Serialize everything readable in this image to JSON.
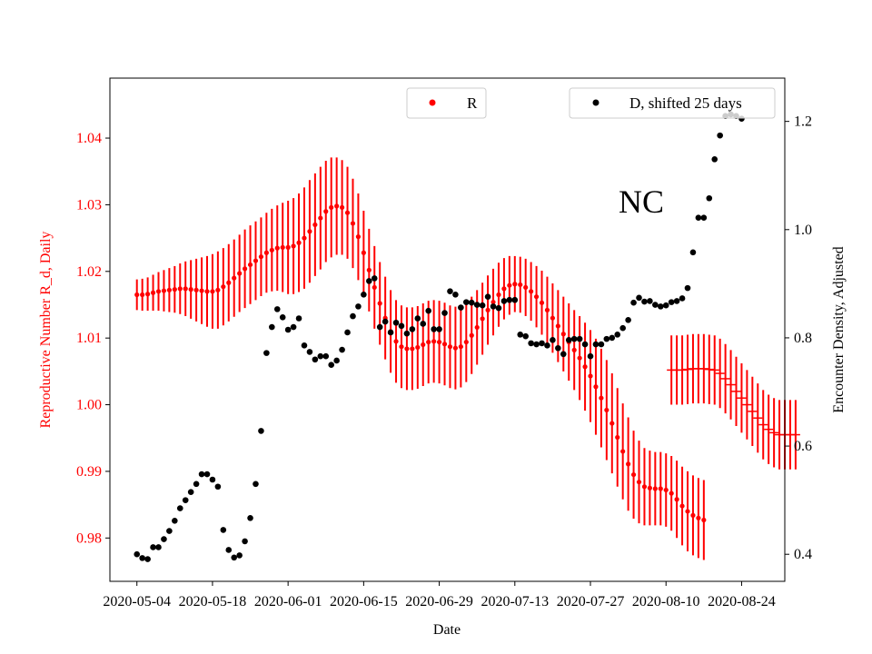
{
  "colors": {
    "r_series": "#ff0000",
    "d_series": "#000000",
    "axis": "#000000",
    "background": "#ffffff"
  },
  "chart_data": {
    "type": "scatter",
    "title": "",
    "annotation": "NC",
    "xlabel": "Date",
    "ylabel_left": "Reproductive Number R_d, Daily",
    "ylabel_right": "Encounter Density, Adjusted",
    "x_tick_labels": [
      "2020-05-04",
      "2020-05-18",
      "2020-06-01",
      "2020-06-15",
      "2020-06-29",
      "2020-07-13",
      "2020-07-27",
      "2020-08-10",
      "2020-08-24"
    ],
    "y_left_tick_labels": [
      "0.98",
      "0.99",
      "1.00",
      "1.01",
      "1.02",
      "1.03",
      "1.04"
    ],
    "y_right_tick_labels": [
      "0.4",
      "0.6",
      "0.8",
      "1.0",
      "1.2"
    ],
    "xlim": [
      "2020-04-29",
      "2020-09-01"
    ],
    "ylim_left": [
      0.9735,
      1.049
    ],
    "ylim_right": [
      0.35,
      1.28
    ],
    "legend": [
      {
        "label": "R",
        "placement": "top-center"
      },
      {
        "label": "D, shifted 25 days",
        "placement": "top-right"
      }
    ],
    "series": [
      {
        "name": "R",
        "axis": "left",
        "color": "#ff0000",
        "start_date": "2020-05-04",
        "values": [
          1.0165,
          1.0165,
          1.0166,
          1.0168,
          1.017,
          1.0171,
          1.0172,
          1.0173,
          1.0174,
          1.0174,
          1.0173,
          1.0172,
          1.0171,
          1.017,
          1.017,
          1.0172,
          1.0177,
          1.0183,
          1.019,
          1.0197,
          1.0204,
          1.021,
          1.0216,
          1.0222,
          1.0228,
          1.0232,
          1.0235,
          1.0236,
          1.0236,
          1.0238,
          1.0243,
          1.025,
          1.026,
          1.027,
          1.028,
          1.029,
          1.0296,
          1.0298,
          1.0296,
          1.0288,
          1.0272,
          1.0252,
          1.0228,
          1.0202,
          1.0176,
          1.0152,
          1.013,
          1.011,
          1.0095,
          1.0087,
          1.0084,
          1.0084,
          1.0086,
          1.009,
          1.0094,
          1.0095,
          1.0094,
          1.0091,
          1.0087,
          1.0085,
          1.0087,
          1.0094,
          1.0104,
          1.0116,
          1.0129,
          1.0142,
          1.0154,
          1.0165,
          1.0174,
          1.0179,
          1.0181,
          1.018,
          1.0176,
          1.017,
          1.0162,
          1.0153,
          1.0142,
          1.013,
          1.0118,
          1.0106,
          1.0094,
          1.0082,
          1.007,
          1.0057,
          1.0043,
          1.0027,
          1.001,
          0.9992,
          0.9972,
          0.9951,
          0.993,
          0.9911,
          0.9895,
          0.9884,
          0.9877,
          0.9875,
          0.9874,
          0.9874,
          0.9872,
          0.9867,
          0.9858,
          0.9848,
          0.984,
          0.9834,
          0.983,
          0.9827
        ],
        "error": [
          0.0023,
          0.0024,
          0.0025,
          0.0027,
          0.0029,
          0.0031,
          0.0033,
          0.0035,
          0.0038,
          0.0041,
          0.0044,
          0.0047,
          0.005,
          0.0053,
          0.0056,
          0.0058,
          0.0058,
          0.0058,
          0.0058,
          0.0058,
          0.0059,
          0.0059,
          0.0059,
          0.0059,
          0.006,
          0.0062,
          0.0064,
          0.0067,
          0.007,
          0.0072,
          0.0074,
          0.0076,
          0.0077,
          0.0077,
          0.0077,
          0.0076,
          0.0075,
          0.0073,
          0.0071,
          0.0069,
          0.0067,
          0.0065,
          0.0063,
          0.0062,
          0.0062,
          0.0062,
          0.0062,
          0.0062,
          0.0062,
          0.0062,
          0.0062,
          0.0062,
          0.0062,
          0.0062,
          0.0062,
          0.0062,
          0.0062,
          0.0062,
          0.0062,
          0.0062,
          0.0061,
          0.006,
          0.0058,
          0.0056,
          0.0054,
          0.0052,
          0.005,
          0.0048,
          0.0046,
          0.0044,
          0.0042,
          0.0042,
          0.0043,
          0.0044,
          0.0046,
          0.0048,
          0.005,
          0.0052,
          0.0054,
          0.0056,
          0.0058,
          0.006,
          0.0063,
          0.0066,
          0.0069,
          0.0072,
          0.0074,
          0.0075,
          0.0075,
          0.0074,
          0.0072,
          0.007,
          0.0066,
          0.0062,
          0.0058,
          0.0056,
          0.0055,
          0.0055,
          0.0055,
          0.0056,
          0.0058,
          0.0059,
          0.006,
          0.006,
          0.006,
          0.006
        ],
        "forecast": {
          "start_date": "2020-08-11",
          "values": [
            1.0052,
            1.0052,
            1.0052,
            1.0053,
            1.0054,
            1.0054,
            1.0054,
            1.0053,
            1.0052,
            1.0047,
            1.0039,
            1.003,
            1.002,
            1.001,
            1.0,
            0.999,
            0.998,
            0.997,
            0.9963,
            0.9958,
            0.9955,
            0.9955,
            0.9955,
            0.9955
          ],
          "error": [
            0.0052,
            0.0052,
            0.0052,
            0.0052,
            0.0052,
            0.0052,
            0.0052,
            0.0052,
            0.0052,
            0.0052,
            0.0052,
            0.0052,
            0.0052,
            0.0052,
            0.0052,
            0.0052,
            0.0052,
            0.0052,
            0.0052,
            0.0052,
            0.0052,
            0.0052,
            0.0052,
            0.0052
          ]
        }
      },
      {
        "name": "D, shifted 25 days",
        "axis": "right",
        "color": "#000000",
        "start_date": "2020-05-04",
        "values": [
          0.4,
          0.393,
          0.391,
          0.413,
          0.413,
          0.428,
          0.443,
          0.462,
          0.485,
          0.5,
          0.515,
          0.53,
          0.548,
          0.548,
          0.538,
          0.525,
          0.445,
          0.408,
          0.394,
          0.398,
          0.424,
          0.467,
          0.53,
          0.628,
          0.772,
          0.82,
          0.853,
          0.838,
          0.815,
          0.82,
          0.836,
          0.786,
          0.774,
          0.76,
          0.766,
          0.766,
          0.75,
          0.758,
          0.778,
          0.81,
          0.84,
          0.858,
          0.88,
          0.905,
          0.91,
          0.82,
          0.83,
          0.81,
          0.828,
          0.822,
          0.808,
          0.816,
          0.836,
          0.826,
          0.85,
          0.816,
          0.816,
          0.846,
          0.886,
          0.88,
          0.856,
          0.866,
          0.865,
          0.861,
          0.86,
          0.876,
          0.858,
          0.855,
          0.868,
          0.87,
          0.87,
          0.806,
          0.803,
          0.79,
          0.788,
          0.79,
          0.786,
          0.796,
          0.781,
          0.77,
          0.796,
          0.798,
          0.798,
          0.788,
          0.766,
          0.788,
          0.788,
          0.798,
          0.8,
          0.806,
          0.818,
          0.833,
          0.865,
          0.874,
          0.867,
          0.868,
          0.861,
          0.858,
          0.86,
          0.866,
          0.868,
          0.873,
          0.892,
          0.958,
          1.022,
          1.022,
          1.058,
          1.13,
          1.174,
          1.21,
          1.213,
          1.21,
          1.205
        ]
      }
    ]
  }
}
